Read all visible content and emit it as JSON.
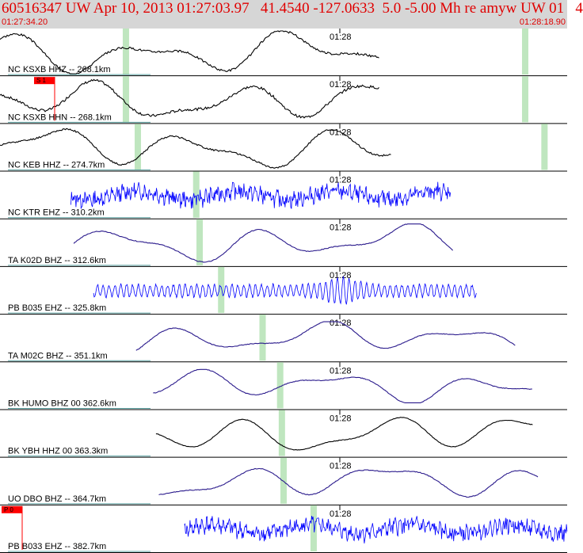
{
  "header": {
    "title": "60516347 UW Apr 10, 2013 01:27:03.97   41.4540 -127.0633  5.0 -5.00 Mh re amyw UW 01   4",
    "start_time": "01:27:34.20",
    "end_time": "01:28:18.90"
  },
  "minute_label": "01:28",
  "colors": {
    "header_bg": "#d6d6d6",
    "title_red": "#e00000",
    "trace_black": "#000000",
    "trace_blue": "#0000ff",
    "trace_purple": "#2a1a8c",
    "pick_green": "#bfe6bf",
    "pick_red": "#ff0000"
  },
  "traces": [
    {
      "label": "NC KSXB HHZ -- 268.1km",
      "color": "#000000",
      "kind": "smooth",
      "start": 0.0,
      "end": 0.67,
      "amp": 0.45,
      "noise": 0.05,
      "seed": 3,
      "picks": [
        0.222,
        0.926
      ],
      "redpick": null
    },
    {
      "label": "NC KSXB HHN -- 268.1km",
      "color": "#000000",
      "kind": "smooth",
      "start": 0.0,
      "end": 0.67,
      "amp": 0.45,
      "noise": 0.06,
      "seed": 7,
      "picks": [
        0.222,
        0.926
      ],
      "redpick": {
        "text": "S 1"
      }
    },
    {
      "label": "NC KEB HHZ -- 274.7km",
      "color": "#000000",
      "kind": "smooth",
      "start": 0.0,
      "end": 0.69,
      "amp": 0.45,
      "noise": 0.04,
      "seed": 11,
      "picks": [
        0.243,
        0.96
      ],
      "redpick": null
    },
    {
      "label": "NC KTR EHZ -- 310.2km",
      "color": "#0000ff",
      "kind": "noisy",
      "start": 0.125,
      "end": 0.795,
      "amp": 0.35,
      "noise": 0.6,
      "seed": 13,
      "picks": [
        0.346
      ],
      "redpick": null
    },
    {
      "label": "TA K02D BHZ -- 312.6km",
      "color": "#2a1a8c",
      "kind": "smooth",
      "start": 0.13,
      "end": 0.8,
      "amp": 0.4,
      "noise": 0.02,
      "seed": 17,
      "picks": [
        0.352
      ],
      "redpick": null
    },
    {
      "label": "PB B035 EHZ -- 325.8km",
      "color": "#0000ff",
      "kind": "osc",
      "start": 0.165,
      "end": 0.84,
      "amp": 0.32,
      "noise": 0.2,
      "seed": 19,
      "picks": [
        0.39
      ],
      "redpick": null
    },
    {
      "label": "TA M02C BHZ -- 351.1km",
      "color": "#2a1a8c",
      "kind": "smooth",
      "start": 0.24,
      "end": 0.91,
      "amp": 0.35,
      "noise": 0.02,
      "seed": 23,
      "picks": [
        0.463
      ],
      "redpick": null
    },
    {
      "label": "BK HUMO BHZ 00 362.6km",
      "color": "#2a1a8c",
      "kind": "smooth",
      "start": 0.27,
      "end": 0.94,
      "amp": 0.35,
      "noise": 0.02,
      "seed": 29,
      "picks": [
        0.494
      ],
      "redpick": null
    },
    {
      "label": "BK YBH HHZ 00 363.3km",
      "color": "#000000",
      "kind": "smooth",
      "start": 0.275,
      "end": 0.94,
      "amp": 0.42,
      "noise": 0.015,
      "seed": 31,
      "picks": [
        0.497
      ],
      "redpick": null
    },
    {
      "label": "UO DBO BHZ -- 364.7km",
      "color": "#2a1a8c",
      "kind": "smooth",
      "start": 0.28,
      "end": 0.95,
      "amp": 0.38,
      "noise": 0.02,
      "seed": 37,
      "picks": [
        0.5
      ],
      "redpick": null
    },
    {
      "label": "PB B033 EHZ -- 382.7km",
      "color": "#0000ff",
      "kind": "noisy",
      "start": 0.325,
      "end": 1.0,
      "amp": 0.35,
      "noise": 0.6,
      "seed": 41,
      "picks": [
        0.553
      ],
      "redpick": {
        "text": "P 0"
      }
    }
  ]
}
